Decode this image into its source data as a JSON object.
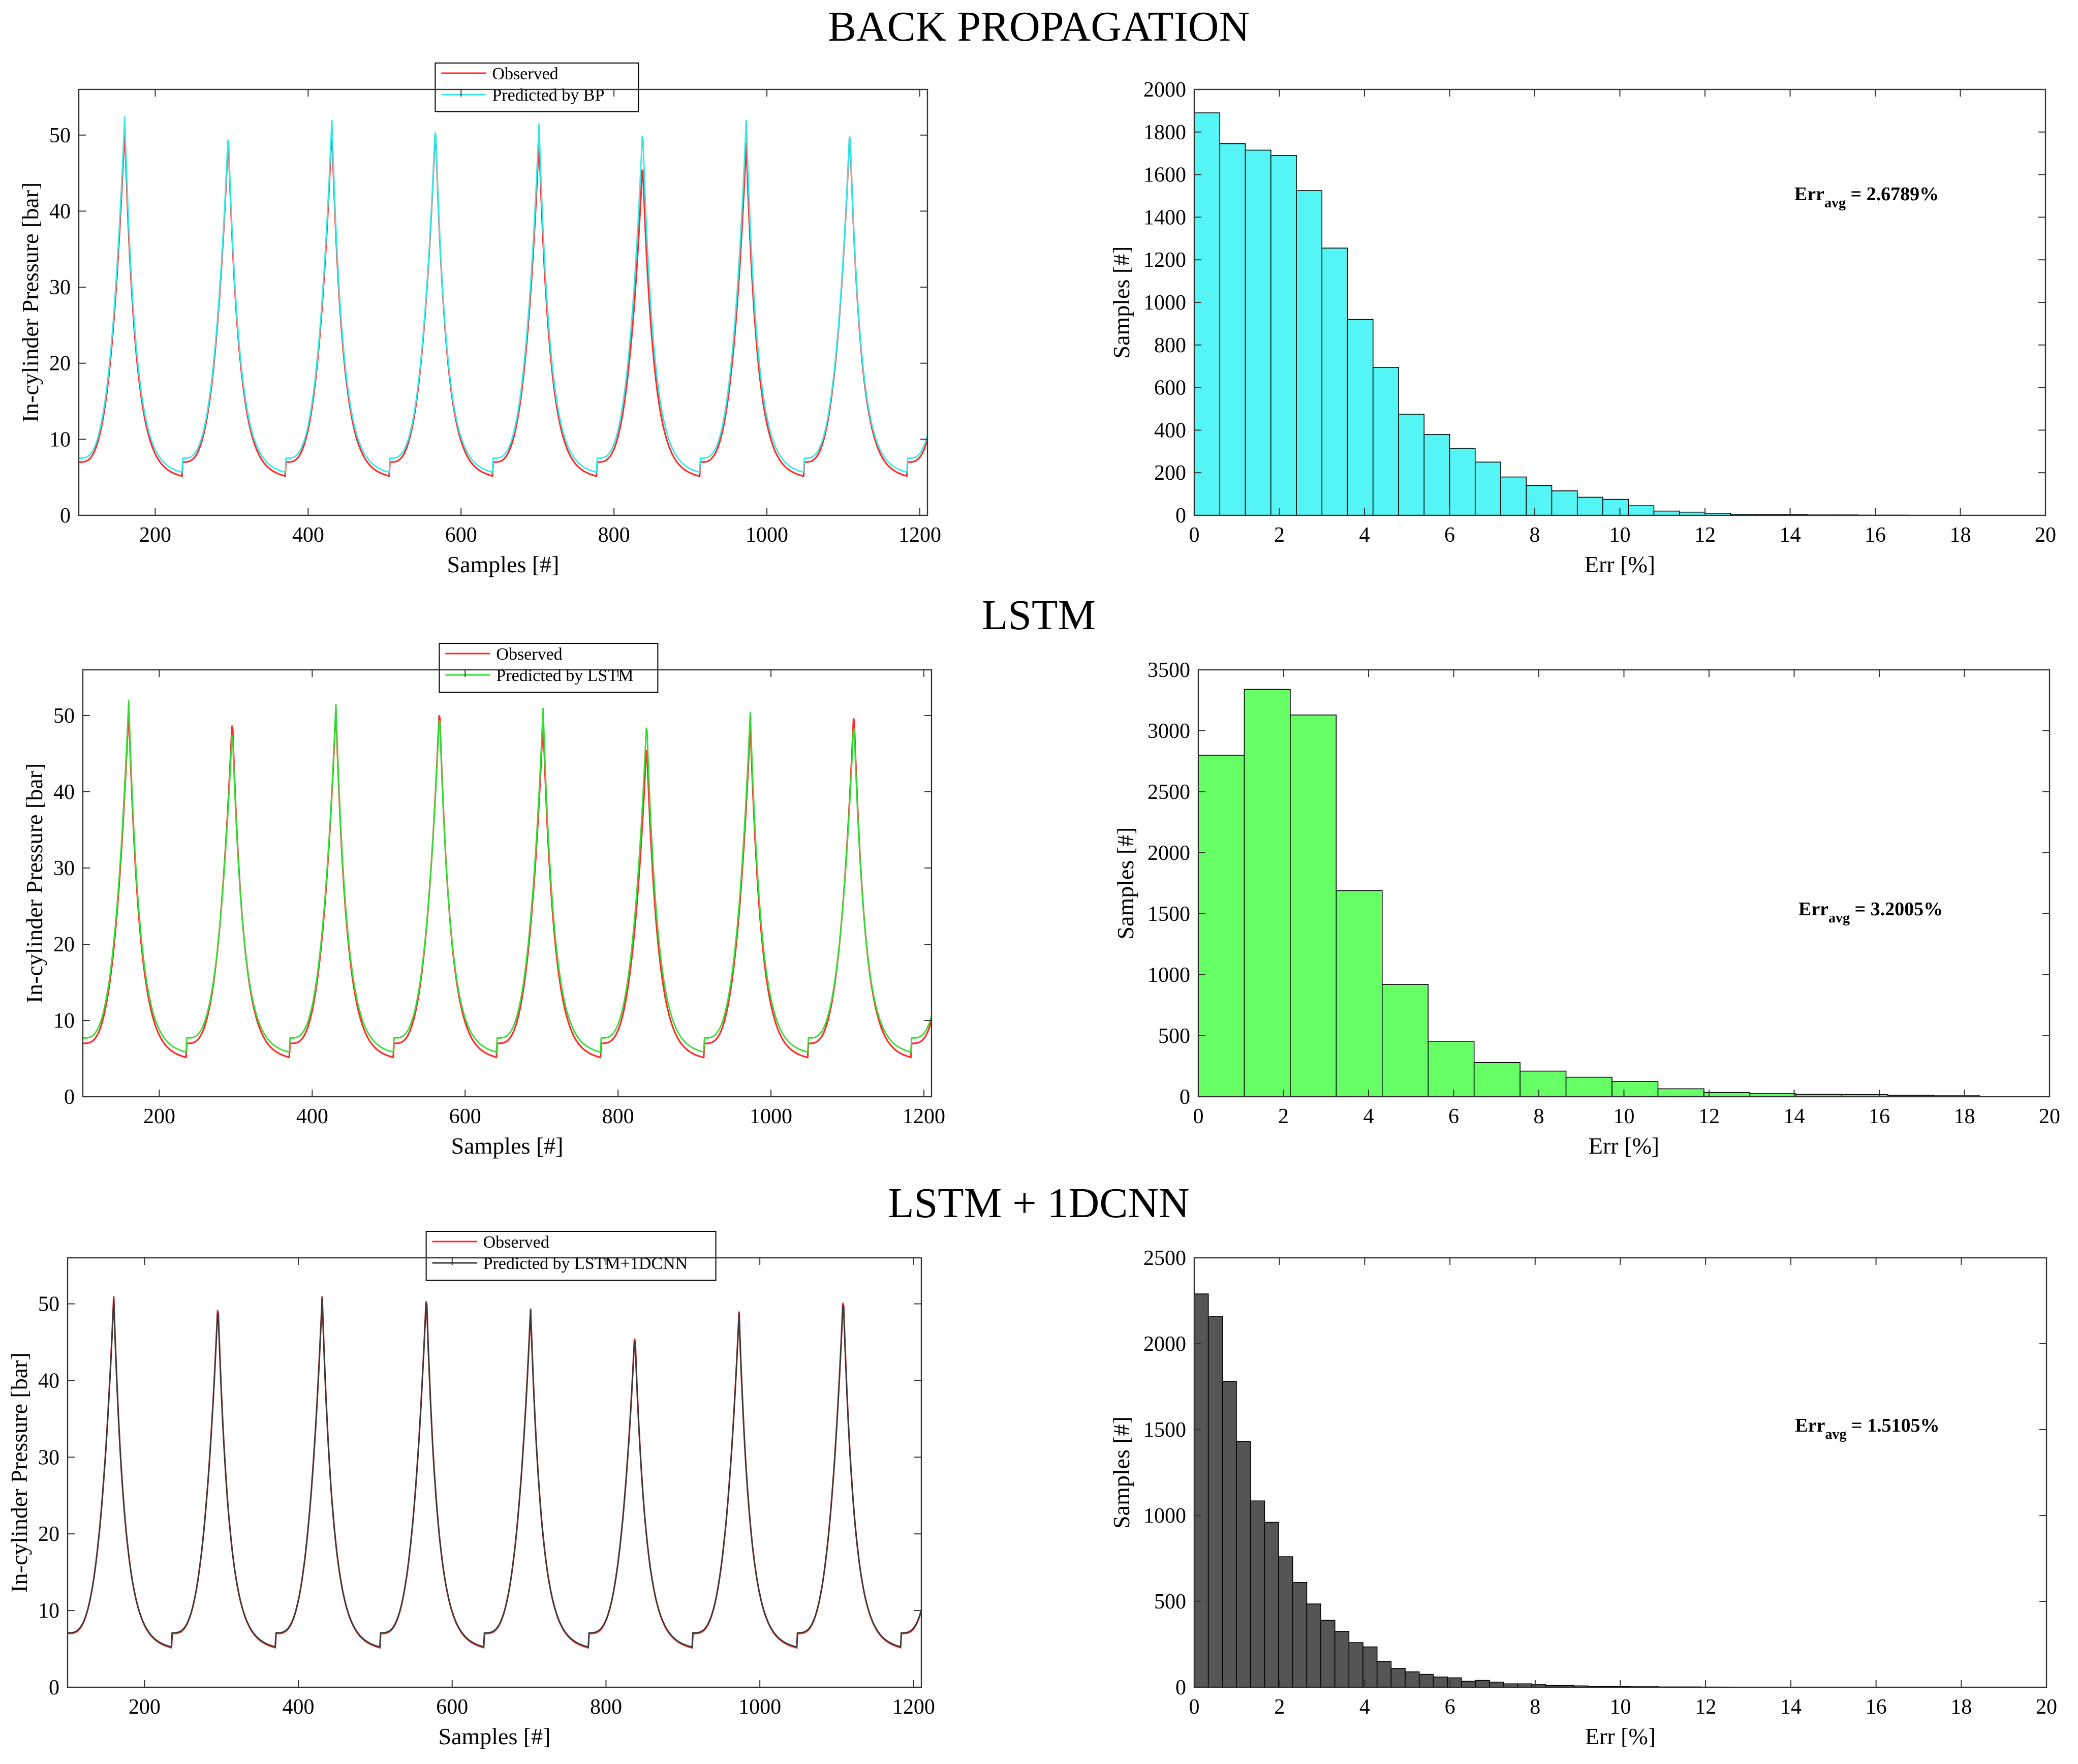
{
  "figure": {
    "sections": [
      {
        "title": "BACK PROPAGATION"
      },
      {
        "title": "LSTM"
      },
      {
        "title": "LSTM + 1DCNN"
      }
    ]
  },
  "chart_data": [
    {
      "type": "line",
      "title": "",
      "xlabel": "Samples [#]",
      "ylabel": "In-cylinder Pressure [bar]",
      "xlim": [
        100,
        1210
      ],
      "ylim": [
        0,
        56
      ],
      "xticks": [
        200,
        400,
        600,
        800,
        1000,
        1200
      ],
      "yticks": [
        0,
        10,
        20,
        30,
        40,
        50
      ],
      "cycle_start": 100,
      "cycle_period": 135.5,
      "peak_offset": 60,
      "series": [
        {
          "name": "Observed",
          "color": "#ff2a2a",
          "peaks": [
            51,
            49.8,
            51,
            51.2,
            49.6,
            46.5,
            49,
            50.8
          ],
          "troughs": [
            5.5,
            5.5,
            5.5,
            5.5,
            5.5,
            5.5,
            5.5,
            5.5
          ]
        },
        {
          "name": "Predicted by BP",
          "color": "#33e8e8",
          "peaks": [
            52.5,
            50.5,
            52,
            51.5,
            51.5,
            51,
            52,
            51
          ],
          "troughs": [
            6,
            6,
            6,
            6,
            6,
            6,
            6,
            6
          ]
        }
      ],
      "legend": "top-center"
    },
    {
      "type": "bar",
      "title": "",
      "xlabel": "Err [%]",
      "ylabel": "Samples [#]",
      "xlim": [
        0,
        20
      ],
      "ylim": [
        0,
        2000
      ],
      "xticks": [
        0,
        2,
        4,
        6,
        8,
        10,
        12,
        14,
        16,
        18,
        20
      ],
      "yticks": [
        0,
        200,
        400,
        600,
        800,
        1000,
        1200,
        1400,
        1600,
        1800,
        2000
      ],
      "bin_width": 0.6,
      "color": "#55f5f5",
      "values": [
        1890,
        1745,
        1715,
        1690,
        1525,
        1255,
        920,
        695,
        475,
        380,
        315,
        250,
        180,
        140,
        115,
        85,
        75,
        45,
        20,
        15,
        10,
        5,
        3,
        3,
        2,
        2,
        1,
        1
      ],
      "annotation": {
        "label": "Err",
        "sub": "avg",
        "value": " = 2.6789%"
      }
    },
    {
      "type": "line",
      "title": "",
      "xlabel": "Samples [#]",
      "ylabel": "In-cylinder Pressure [bar]",
      "xlim": [
        100,
        1210
      ],
      "ylim": [
        0,
        56
      ],
      "xticks": [
        200,
        400,
        600,
        800,
        1000,
        1200
      ],
      "yticks": [
        0,
        10,
        20,
        30,
        40,
        50
      ],
      "cycle_start": 100,
      "cycle_period": 135.5,
      "peak_offset": 60,
      "series": [
        {
          "name": "Observed",
          "color": "#ff2a2a",
          "peaks": [
            51,
            49.8,
            51,
            51.2,
            49.6,
            46.5,
            49,
            50.8
          ],
          "troughs": [
            5.5,
            5.5,
            5.5,
            5.5,
            5.5,
            5.5,
            5.5,
            5.5
          ]
        },
        {
          "name": "Predicted by LSTM",
          "color": "#33dd33",
          "peaks": [
            52,
            48.5,
            51.5,
            50.5,
            51,
            49.5,
            50.5,
            49.5
          ],
          "troughs": [
            6.2,
            6.2,
            6.2,
            6.2,
            6.2,
            6.2,
            6.2,
            6.2
          ]
        }
      ],
      "legend": "top-center"
    },
    {
      "type": "bar",
      "title": "",
      "xlabel": "Err [%]",
      "ylabel": "Samples [#]",
      "xlim": [
        0,
        20
      ],
      "ylim": [
        0,
        3500
      ],
      "xticks": [
        0,
        2,
        4,
        6,
        8,
        10,
        12,
        14,
        16,
        18,
        20
      ],
      "yticks": [
        0,
        500,
        1000,
        1500,
        2000,
        2500,
        3000,
        3500
      ],
      "bin_width": 1.08,
      "color": "#66ff66",
      "values": [
        2800,
        3340,
        3130,
        1690,
        920,
        455,
        280,
        210,
        160,
        125,
        65,
        35,
        25,
        20,
        18,
        12,
        8
      ],
      "annotation": {
        "label": "Err",
        "sub": "avg",
        "value": " = 3.2005%"
      }
    },
    {
      "type": "line",
      "title": "",
      "xlabel": "Samples [#]",
      "ylabel": "In-cylinder Pressure [bar]",
      "xlim": [
        100,
        1210
      ],
      "ylim": [
        0,
        56
      ],
      "xticks": [
        200,
        400,
        600,
        800,
        1000,
        1200
      ],
      "yticks": [
        0,
        10,
        20,
        30,
        40,
        50
      ],
      "cycle_start": 100,
      "cycle_period": 135.5,
      "peak_offset": 60,
      "series": [
        {
          "name": "Observed",
          "color": "#ff2a2a",
          "peaks": [
            51,
            50.3,
            51,
            51.5,
            49.4,
            46.5,
            49,
            51.3
          ],
          "troughs": [
            5.5,
            5.5,
            5.5,
            5.5,
            5.5,
            5.5,
            5.5,
            5.5
          ]
        },
        {
          "name": "Predicted by LSTM+1DCNN",
          "color": "#3a3a3a",
          "peaks": [
            50.7,
            50,
            50.8,
            51.3,
            49.2,
            46.2,
            48.8,
            51
          ],
          "troughs": [
            5.6,
            5.6,
            5.6,
            5.6,
            5.6,
            5.6,
            5.6,
            5.6
          ]
        }
      ],
      "legend": "top-center"
    },
    {
      "type": "bar",
      "title": "",
      "xlabel": "Err [%]",
      "ylabel": "Samples [#]",
      "xlim": [
        0,
        20
      ],
      "ylim": [
        0,
        2500
      ],
      "xticks": [
        0,
        2,
        4,
        6,
        8,
        10,
        12,
        14,
        16,
        18,
        20
      ],
      "yticks": [
        0,
        500,
        1000,
        1500,
        2000,
        2500
      ],
      "bin_width": 0.33,
      "color": "#555555",
      "values": [
        2290,
        2160,
        1780,
        1430,
        1085,
        960,
        760,
        610,
        485,
        390,
        325,
        260,
        235,
        150,
        110,
        90,
        75,
        60,
        55,
        35,
        40,
        30,
        20,
        20,
        15,
        10,
        10,
        8,
        6,
        5,
        4,
        3,
        3,
        2,
        2,
        2,
        1,
        1
      ],
      "annotation": {
        "label": "Err",
        "sub": "avg",
        "value": " = 1.5105%"
      }
    }
  ]
}
